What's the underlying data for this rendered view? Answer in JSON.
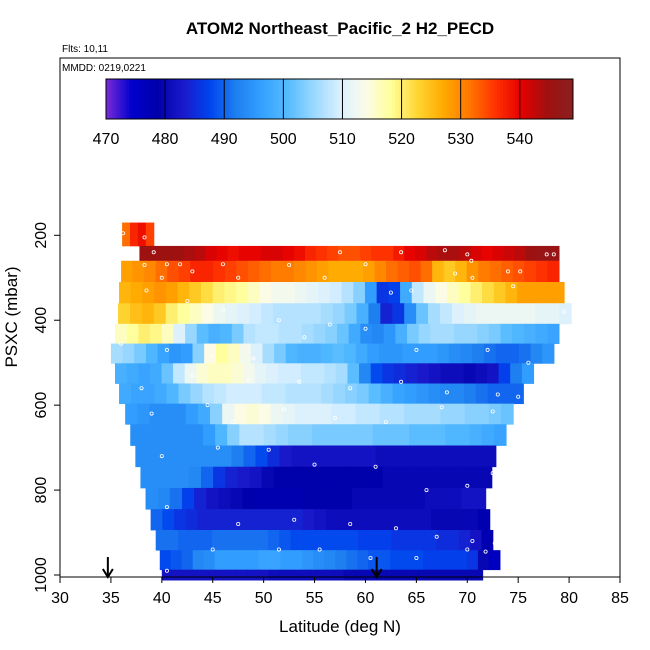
{
  "chart_data": {
    "type": "heatmap",
    "title": "ATOM2 Northeast_Pacific_2 H2_PECD",
    "annotations": [
      "Flts: 10,11",
      "MMDD: 0219,0221"
    ],
    "xlabel": "Latitude (deg N)",
    "ylabel": "PSXC (mbar)",
    "xlim": [
      30,
      85
    ],
    "ylim": [
      1000,
      0
    ],
    "x_ticks": [
      30,
      35,
      40,
      45,
      50,
      55,
      60,
      65,
      70,
      75,
      80,
      85
    ],
    "y_ticks": [
      200,
      400,
      600,
      800,
      1000
    ],
    "colorbar": {
      "ticks": [
        470,
        480,
        490,
        500,
        510,
        520,
        530,
        540
      ],
      "range": [
        470,
        549
      ],
      "placement": "top-inside"
    },
    "arrows_at_latitude": [
      34.7,
      61.1
    ],
    "colors": [
      "#7a2bd8",
      "#0000cc",
      "#0000aa",
      "#1a1acc",
      "#0044ee",
      "#1e7ff0",
      "#33a0ff",
      "#55bbff",
      "#99d8ff",
      "#d8f0ff",
      "#fbfbe8",
      "#ffff99",
      "#ffd633",
      "#ffaa00",
      "#ff7700",
      "#ff3300",
      "#e60000",
      "#a01010",
      "#8a2020"
    ],
    "layers": [
      {
        "p": 200,
        "lat_start": 36.1,
        "lat_end": 39.2,
        "values": [
          532,
          537,
          539,
          535
        ]
      },
      {
        "p": 235,
        "lat_start": 37.8,
        "lat_end": 79.0,
        "values": [
          545,
          545,
          545,
          545,
          544,
          543,
          541,
          540,
          539,
          540,
          540,
          541,
          541,
          540,
          539,
          537,
          536,
          535,
          534,
          534,
          535,
          536,
          536,
          538,
          540,
          541,
          543,
          544,
          544,
          543,
          541,
          540,
          541,
          542,
          543,
          545,
          546,
          546
        ]
      },
      {
        "p": 285,
        "lat_start": 36.0,
        "lat_end": 79.0,
        "values": [
          528,
          529,
          530,
          532,
          534,
          535,
          537,
          537,
          536,
          535,
          534,
          533,
          532,
          531,
          531,
          530,
          529,
          528,
          527,
          527,
          527,
          528,
          530,
          532,
          533,
          534,
          532,
          526,
          524,
          526,
          529,
          531,
          532,
          533,
          534,
          535,
          536,
          537
        ]
      },
      {
        "p": 335,
        "lat_start": 35.8,
        "lat_end": 79.5,
        "values": [
          526,
          527,
          528,
          529,
          528,
          526,
          524,
          522,
          520,
          519,
          518,
          516,
          514,
          513,
          513,
          512,
          511,
          510,
          509,
          507,
          504,
          496,
          486,
          487,
          498,
          508,
          512,
          514,
          516,
          518,
          520,
          522,
          524,
          526,
          528,
          528,
          528,
          528
        ]
      },
      {
        "p": 385,
        "lat_start": 35.7,
        "lat_end": 80.2,
        "values": [
          523,
          525,
          526,
          524,
          520,
          518,
          516,
          514,
          512,
          511,
          510,
          509,
          508,
          507,
          507,
          507,
          507,
          506,
          505,
          503,
          499,
          492,
          484,
          486,
          494,
          502,
          506,
          508,
          510,
          511,
          512,
          512,
          512,
          512,
          512,
          511,
          511,
          510
        ]
      },
      {
        "p": 432,
        "lat_start": 35.4,
        "lat_end": 79.0,
        "values": [
          516,
          518,
          520,
          519,
          516,
          510,
          505,
          501,
          499,
          500,
          503,
          507,
          508,
          508,
          507,
          507,
          506,
          505,
          504,
          502,
          498,
          494,
          493,
          495,
          499,
          503,
          505,
          506,
          506,
          505,
          505,
          504,
          503,
          501,
          500,
          499,
          498,
          497
        ]
      },
      {
        "p": 478,
        "lat_start": 35.0,
        "lat_end": 78.5,
        "values": [
          506,
          505,
          503,
          500,
          497,
          495,
          496,
          504,
          514,
          518,
          516,
          513,
          510,
          506,
          503,
          500,
          499,
          499,
          500,
          501,
          500,
          498,
          496,
          495,
          495,
          496,
          496,
          496,
          495,
          494,
          493,
          492,
          491,
          490,
          490,
          491,
          493,
          495
        ]
      },
      {
        "p": 525,
        "lat_start": 35.4,
        "lat_end": 76.5,
        "values": [
          499,
          498,
          497,
          498,
          502,
          508,
          512,
          515,
          516,
          516,
          515,
          513,
          511,
          510,
          509,
          509,
          508,
          508,
          507,
          506,
          501,
          493,
          488,
          486,
          485,
          484,
          483,
          482,
          481,
          481,
          480,
          481,
          482,
          487,
          492,
          496
        ]
      },
      {
        "p": 573,
        "lat_start": 35.8,
        "lat_end": 75.5,
        "values": [
          498,
          497,
          497,
          498,
          500,
          503,
          505,
          507,
          508,
          509,
          509,
          509,
          508,
          508,
          507,
          507,
          507,
          506,
          505,
          504,
          503,
          501,
          499,
          497,
          496,
          495,
          494,
          493,
          493,
          492,
          491,
          490,
          490,
          490
        ]
      },
      {
        "p": 620,
        "lat_start": 36.4,
        "lat_end": 74.5,
        "values": [
          496,
          495,
          494,
          494,
          494,
          496,
          498,
          504,
          512,
          514,
          515,
          514,
          512,
          511,
          510,
          510,
          510,
          509,
          509,
          508,
          508,
          507,
          507,
          506,
          506,
          506,
          505,
          505,
          504,
          504,
          503,
          502
        ]
      },
      {
        "p": 670,
        "lat_start": 36.9,
        "lat_end": 73.8,
        "values": [
          494,
          494,
          494,
          494,
          494,
          494,
          496,
          500,
          504,
          507,
          507,
          506,
          505,
          504,
          504,
          503,
          503,
          503,
          503,
          503,
          502,
          502,
          502,
          501,
          501,
          501,
          500,
          500,
          499,
          498,
          497
        ]
      },
      {
        "p": 720,
        "lat_start": 37.4,
        "lat_end": 72.8,
        "values": [
          494,
          494,
          494,
          494,
          494,
          494,
          494,
          494,
          492,
          490,
          488,
          485,
          483,
          482,
          482,
          482,
          482,
          482,
          482,
          482,
          481,
          481,
          481,
          481,
          481,
          481,
          481,
          481,
          481,
          481
        ]
      },
      {
        "p": 770,
        "lat_start": 37.9,
        "lat_end": 72.4,
        "values": [
          494,
          494,
          494,
          494,
          493,
          490,
          486,
          484,
          483,
          482,
          480,
          479,
          479,
          479,
          479,
          479,
          479,
          479,
          479,
          479,
          480,
          480,
          480,
          480,
          480,
          480,
          480,
          480,
          480
        ]
      },
      {
        "p": 820,
        "lat_start": 38.4,
        "lat_end": 71.8,
        "values": [
          494,
          493,
          491,
          487,
          484,
          482,
          481,
          480,
          479,
          478,
          478,
          478,
          478,
          479,
          479,
          479,
          479,
          480,
          480,
          480,
          480,
          480,
          480,
          481,
          481,
          481,
          482,
          482
        ]
      },
      {
        "p": 870,
        "lat_start": 38.9,
        "lat_end": 72.2,
        "values": [
          490,
          488,
          486,
          485,
          484,
          484,
          484,
          484,
          484,
          484,
          484,
          484,
          484,
          483,
          482,
          481,
          481,
          481,
          481,
          481,
          481,
          481,
          481,
          481,
          480,
          480,
          480,
          480,
          478
        ]
      },
      {
        "p": 918,
        "lat_start": 39.4,
        "lat_end": 72.5,
        "values": [
          491,
          491,
          490,
          490,
          490,
          491,
          491,
          491,
          491,
          491,
          490,
          489,
          488,
          488,
          488,
          488,
          488,
          488,
          487,
          487,
          487,
          486,
          486,
          486,
          486,
          485,
          485,
          484,
          482,
          478
        ]
      },
      {
        "p": 965,
        "lat_start": 39.8,
        "lat_end": 73.2,
        "values": [
          488,
          489,
          490,
          493,
          494,
          496,
          496,
          496,
          496,
          497,
          497,
          496,
          496,
          495,
          494,
          493,
          492,
          491,
          490,
          489,
          489,
          488,
          488,
          488,
          487,
          487,
          487,
          487,
          486,
          480,
          476
        ]
      },
      {
        "p": 1010,
        "lat_start": 40.0,
        "lat_end": 71.5,
        "values": [
          482,
          482,
          482,
          482,
          482,
          482,
          482,
          482,
          482,
          482,
          481,
          481,
          481,
          481,
          481,
          481,
          481,
          480,
          480,
          480,
          480,
          480,
          480,
          480,
          480,
          480,
          480,
          480,
          480,
          480
        ]
      }
    ],
    "sample_points": [
      [
        36.2,
        195
      ],
      [
        38.3,
        205
      ],
      [
        39.2,
        240
      ],
      [
        40.5,
        268
      ],
      [
        41.8,
        268
      ],
      [
        46.0,
        268
      ],
      [
        57.5,
        240
      ],
      [
        63.5,
        240
      ],
      [
        67.8,
        235
      ],
      [
        70.0,
        245
      ],
      [
        70.4,
        260
      ],
      [
        75.2,
        285
      ],
      [
        77.8,
        245
      ],
      [
        78.5,
        245
      ],
      [
        38.3,
        270
      ],
      [
        43.0,
        285
      ],
      [
        47.5,
        300
      ],
      [
        52.5,
        270
      ],
      [
        56.0,
        300
      ],
      [
        60.0,
        268
      ],
      [
        64.5,
        330
      ],
      [
        68.8,
        290
      ],
      [
        74.0,
        285
      ],
      [
        38.5,
        330
      ],
      [
        40.0,
        300
      ],
      [
        42.5,
        355
      ],
      [
        46.0,
        375
      ],
      [
        51.5,
        400
      ],
      [
        56.5,
        410
      ],
      [
        62.5,
        335
      ],
      [
        70.5,
        300
      ],
      [
        74.5,
        320
      ],
      [
        79.5,
        380
      ],
      [
        36.0,
        455
      ],
      [
        40.5,
        470
      ],
      [
        45.0,
        485
      ],
      [
        49.0,
        490
      ],
      [
        54.0,
        440
      ],
      [
        60.0,
        420
      ],
      [
        65.0,
        470
      ],
      [
        72.0,
        470
      ],
      [
        76.0,
        500
      ],
      [
        38.0,
        560
      ],
      [
        43.0,
        530
      ],
      [
        48.5,
        540
      ],
      [
        53.5,
        545
      ],
      [
        58.5,
        560
      ],
      [
        63.5,
        545
      ],
      [
        68.0,
        570
      ],
      [
        73.0,
        575
      ],
      [
        75.0,
        580
      ],
      [
        39.0,
        620
      ],
      [
        44.5,
        600
      ],
      [
        47.0,
        640
      ],
      [
        52.0,
        610
      ],
      [
        57.0,
        630
      ],
      [
        62.0,
        640
      ],
      [
        67.5,
        605
      ],
      [
        72.5,
        615
      ],
      [
        75.5,
        650
      ],
      [
        40.0,
        720
      ],
      [
        45.5,
        700
      ],
      [
        50.5,
        705
      ],
      [
        55.0,
        740
      ],
      [
        61.0,
        745
      ],
      [
        66.0,
        800
      ],
      [
        70.0,
        790
      ],
      [
        72.5,
        760
      ],
      [
        40.5,
        840
      ],
      [
        47.5,
        880
      ],
      [
        53.0,
        870
      ],
      [
        58.5,
        880
      ],
      [
        63.0,
        890
      ],
      [
        67.0,
        910
      ],
      [
        70.5,
        920
      ],
      [
        72.7,
        925
      ],
      [
        40.5,
        990
      ],
      [
        45.0,
        940
      ],
      [
        51.5,
        940
      ],
      [
        55.5,
        940
      ],
      [
        60.5,
        960
      ],
      [
        65.0,
        960
      ],
      [
        70.0,
        940
      ],
      [
        71.8,
        945
      ]
    ]
  }
}
